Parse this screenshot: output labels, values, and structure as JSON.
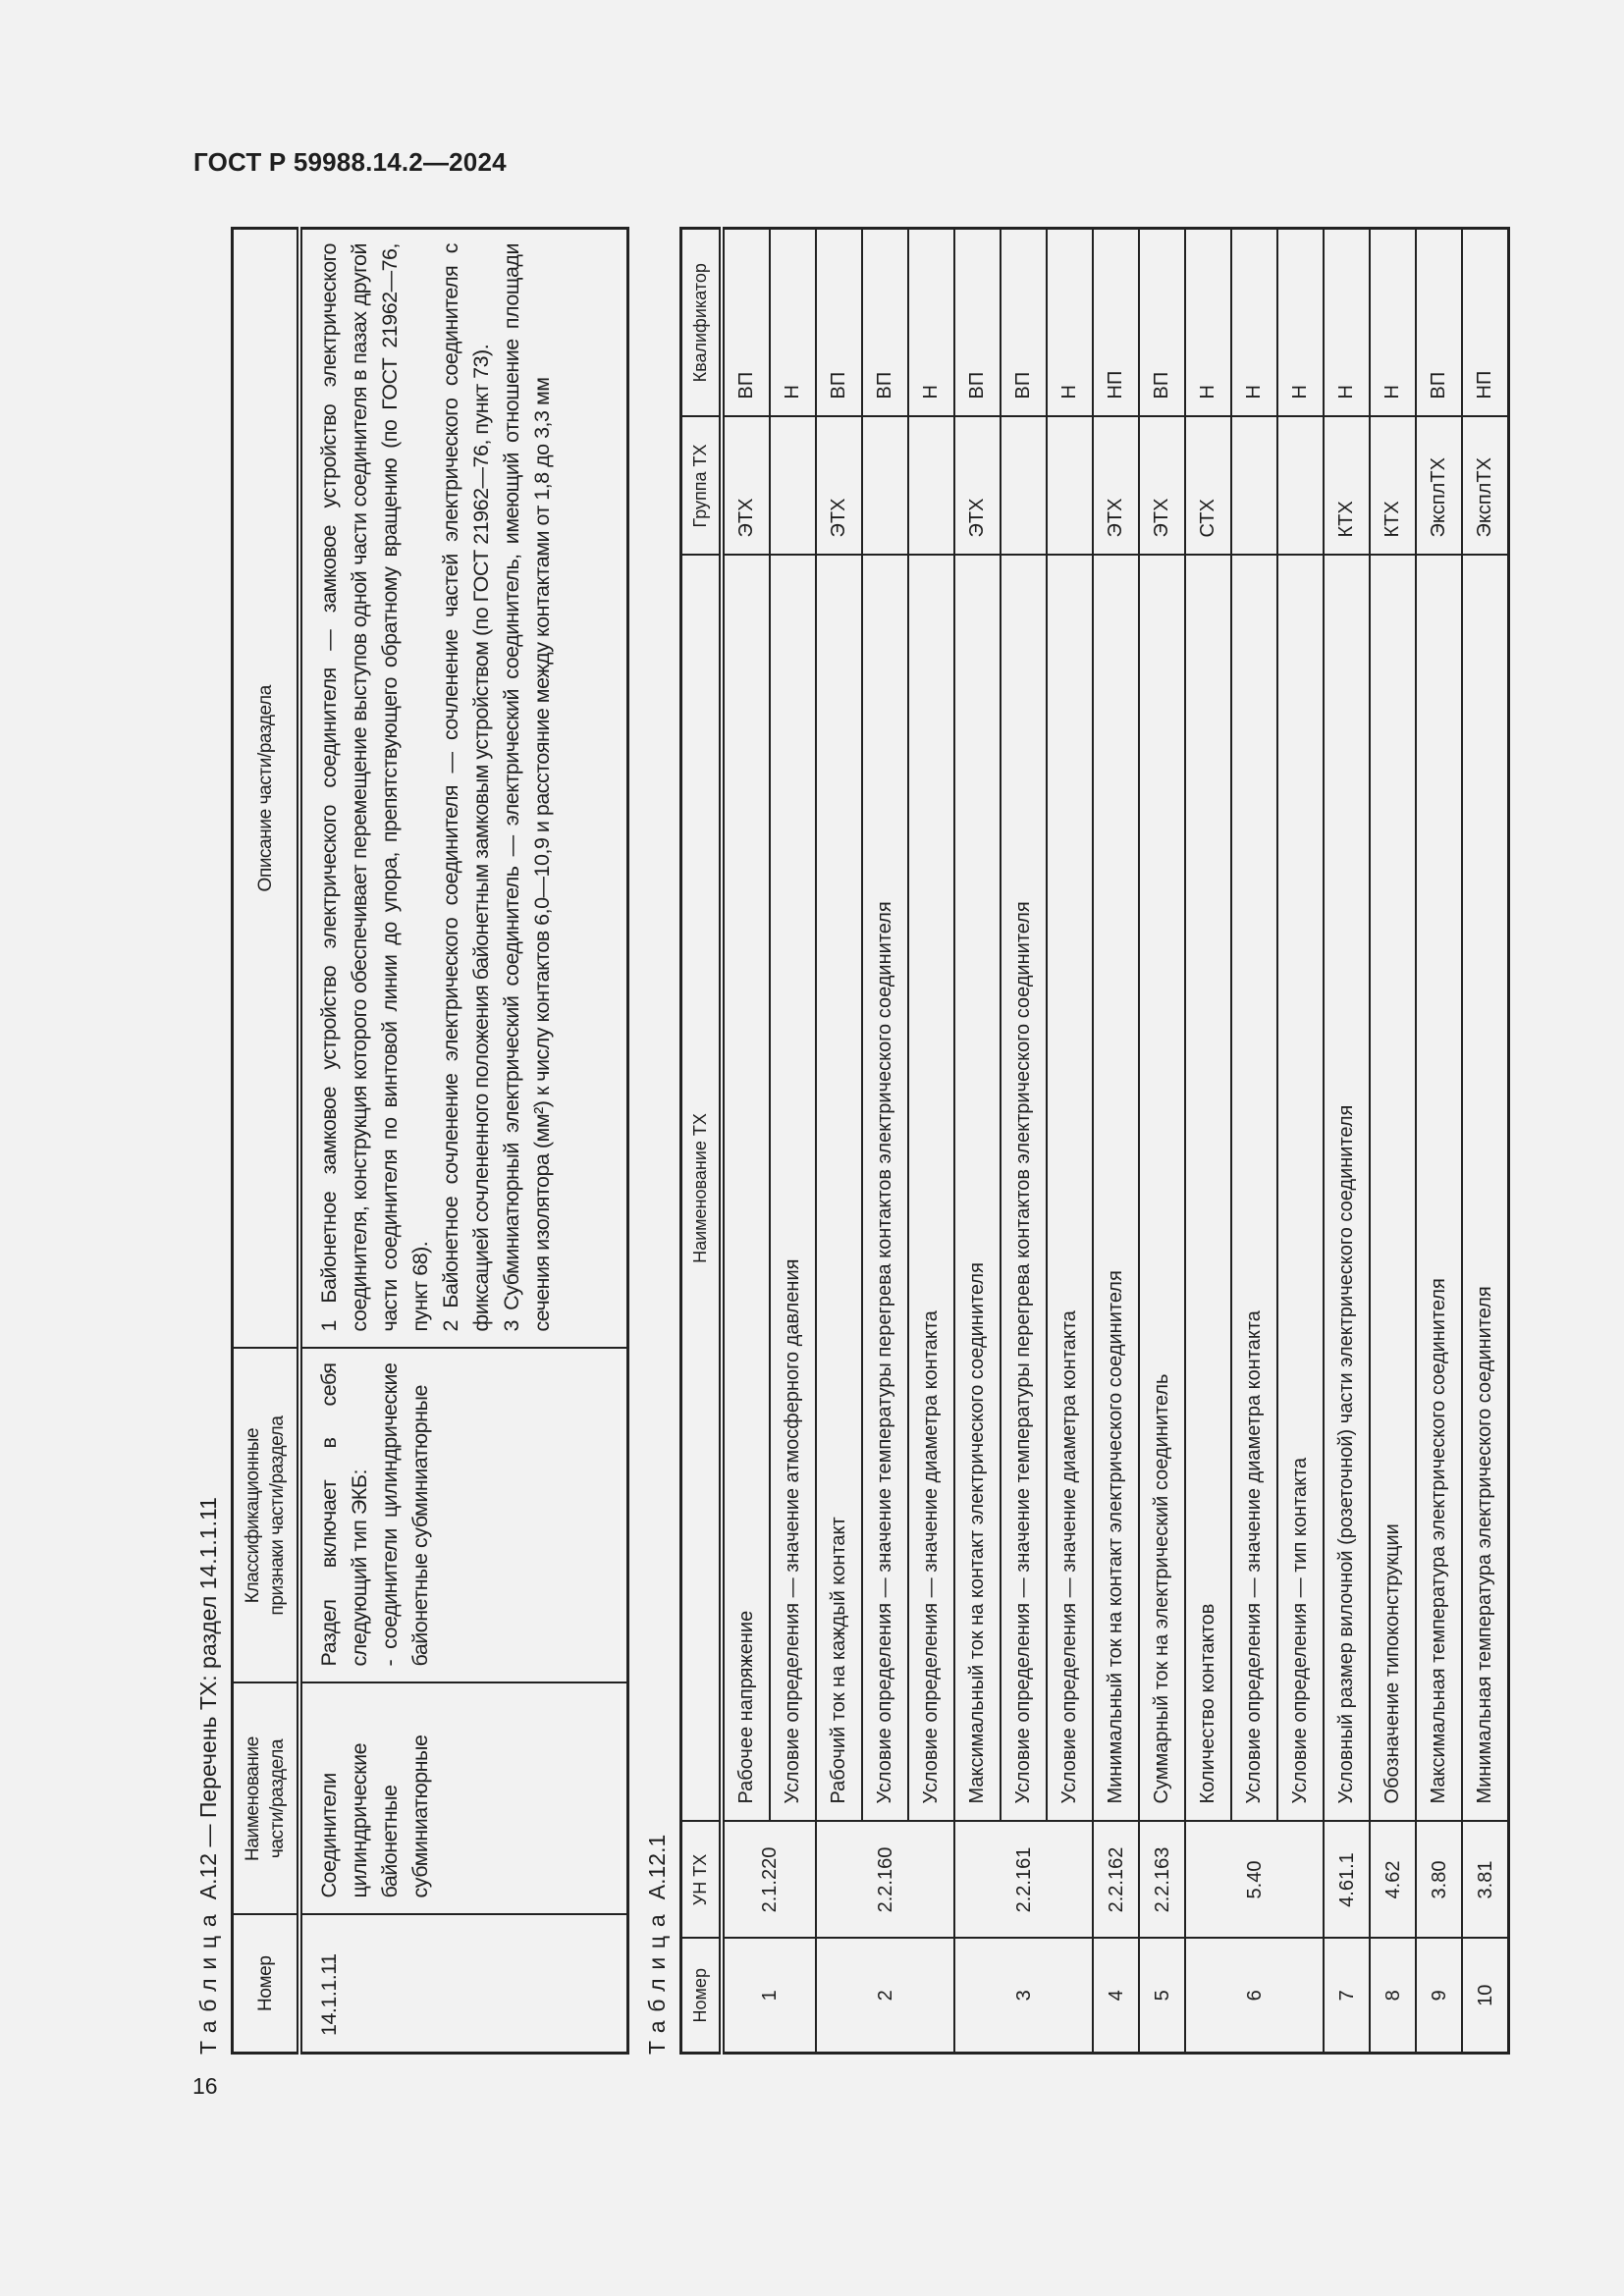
{
  "document": {
    "header": "ГОСТ Р 59988.14.2—2024",
    "page_number": "16"
  },
  "table_a12": {
    "caption_word": "Таблица",
    "caption_rest": "A.12 — Перечень ТХ: раздел 14.1.1.11",
    "columns": [
      "Номер",
      "Наименование части/раздела",
      "Классификационные признаки части/раздела",
      "Описание части/раздела"
    ],
    "row": {
      "number": "14.1.1.11",
      "name_lines": [
        "Соединители",
        "цилиндрические",
        "байонетные",
        "субминиатюрные"
      ],
      "classification": [
        "Раздел включает в себя следующий тип ЭКБ:",
        "- соединители цилиндрические байонетные субминиатюрные"
      ],
      "description": [
        "1 Байонетное замковое устройство электрического соединителя — замковое устройство электрического соединителя, конструкция которого обеспечивает перемещение выступов одной части соединителя в пазах другой части соединителя по винтовой линии до упора, препятствующего обратному вращению (по ГОСТ 21962—76, пункт 68).",
        "2 Байонетное сочленение электрического соединителя — сочленение частей электрического соединителя с фиксацией сочлененного положения байонетным замковым устройством (по ГОСТ 21962—76, пункт 73).",
        "3 Субминиатюрный электрический соединитель — электрический соединитель, имеющий отношение площади сечения изолятора (мм²) к числу контактов 6,0—10,9 и расстояние между контактами от 1,8 до 3,3 мм"
      ]
    }
  },
  "table_a12_1": {
    "caption_word": "Таблица",
    "caption_rest": "A.12.1",
    "columns": [
      "Номер",
      "УН ТХ",
      "Наименование ТХ",
      "Группа ТХ",
      "Квалификатор"
    ],
    "groups": [
      {
        "number": "1",
        "code": "2.1.220",
        "rows": [
          {
            "name": "Рабочее напряжение",
            "group": "ЭТХ",
            "qualifier": "ВП"
          },
          {
            "name": "Условие определения — значение атмосферного давления",
            "group": "",
            "qualifier": "Н"
          }
        ]
      },
      {
        "number": "2",
        "code": "2.2.160",
        "rows": [
          {
            "name": "Рабочий ток на каждый контакт",
            "group": "ЭТХ",
            "qualifier": "ВП"
          },
          {
            "name": "Условие определения — значение температуры перегрева контактов электрического соединителя",
            "group": "",
            "qualifier": "ВП"
          },
          {
            "name": "Условие определения — значение диаметра контакта",
            "group": "",
            "qualifier": "Н"
          }
        ]
      },
      {
        "number": "3",
        "code": "2.2.161",
        "rows": [
          {
            "name": "Максимальный ток на контакт электрического соединителя",
            "group": "ЭТХ",
            "qualifier": "ВП"
          },
          {
            "name": "Условие определения — значение температуры перегрева контактов электрического соединителя",
            "group": "",
            "qualifier": "ВП"
          },
          {
            "name": "Условие определения — значение диаметра контакта",
            "group": "",
            "qualifier": "Н"
          }
        ]
      },
      {
        "number": "4",
        "code": "2.2.162",
        "rows": [
          {
            "name": "Минимальный ток на контакт электрического соединителя",
            "group": "ЭТХ",
            "qualifier": "НП"
          }
        ]
      },
      {
        "number": "5",
        "code": "2.2.163",
        "rows": [
          {
            "name": "Суммарный ток на электрический соединитель",
            "group": "ЭТХ",
            "qualifier": "ВП"
          }
        ]
      },
      {
        "number": "6",
        "code": "5.40",
        "rows": [
          {
            "name": "Количество контактов",
            "group": "СТХ",
            "qualifier": "Н"
          },
          {
            "name": "Условие определения — значение диаметра контакта",
            "group": "",
            "qualifier": "Н"
          },
          {
            "name": "Условие определения — тип контакта",
            "group": "",
            "qualifier": "Н"
          }
        ]
      },
      {
        "number": "7",
        "code": "4.61.1",
        "rows": [
          {
            "name": "Условный размер вилочной (розеточной) части электрического соединителя",
            "group": "КТХ",
            "qualifier": "Н"
          }
        ]
      },
      {
        "number": "8",
        "code": "4.62",
        "rows": [
          {
            "name": "Обозначение типоконструкции",
            "group": "КТХ",
            "qualifier": "Н"
          }
        ]
      },
      {
        "number": "9",
        "code": "3.80",
        "rows": [
          {
            "name": "Максимальная температура электрического соединителя",
            "group": "ЭксплТХ",
            "qualifier": "ВП"
          }
        ]
      },
      {
        "number": "10",
        "code": "3.81",
        "rows": [
          {
            "name": "Минимальная температура электрического соединителя",
            "group": "ЭксплТХ",
            "qualifier": "НП"
          }
        ]
      }
    ]
  }
}
